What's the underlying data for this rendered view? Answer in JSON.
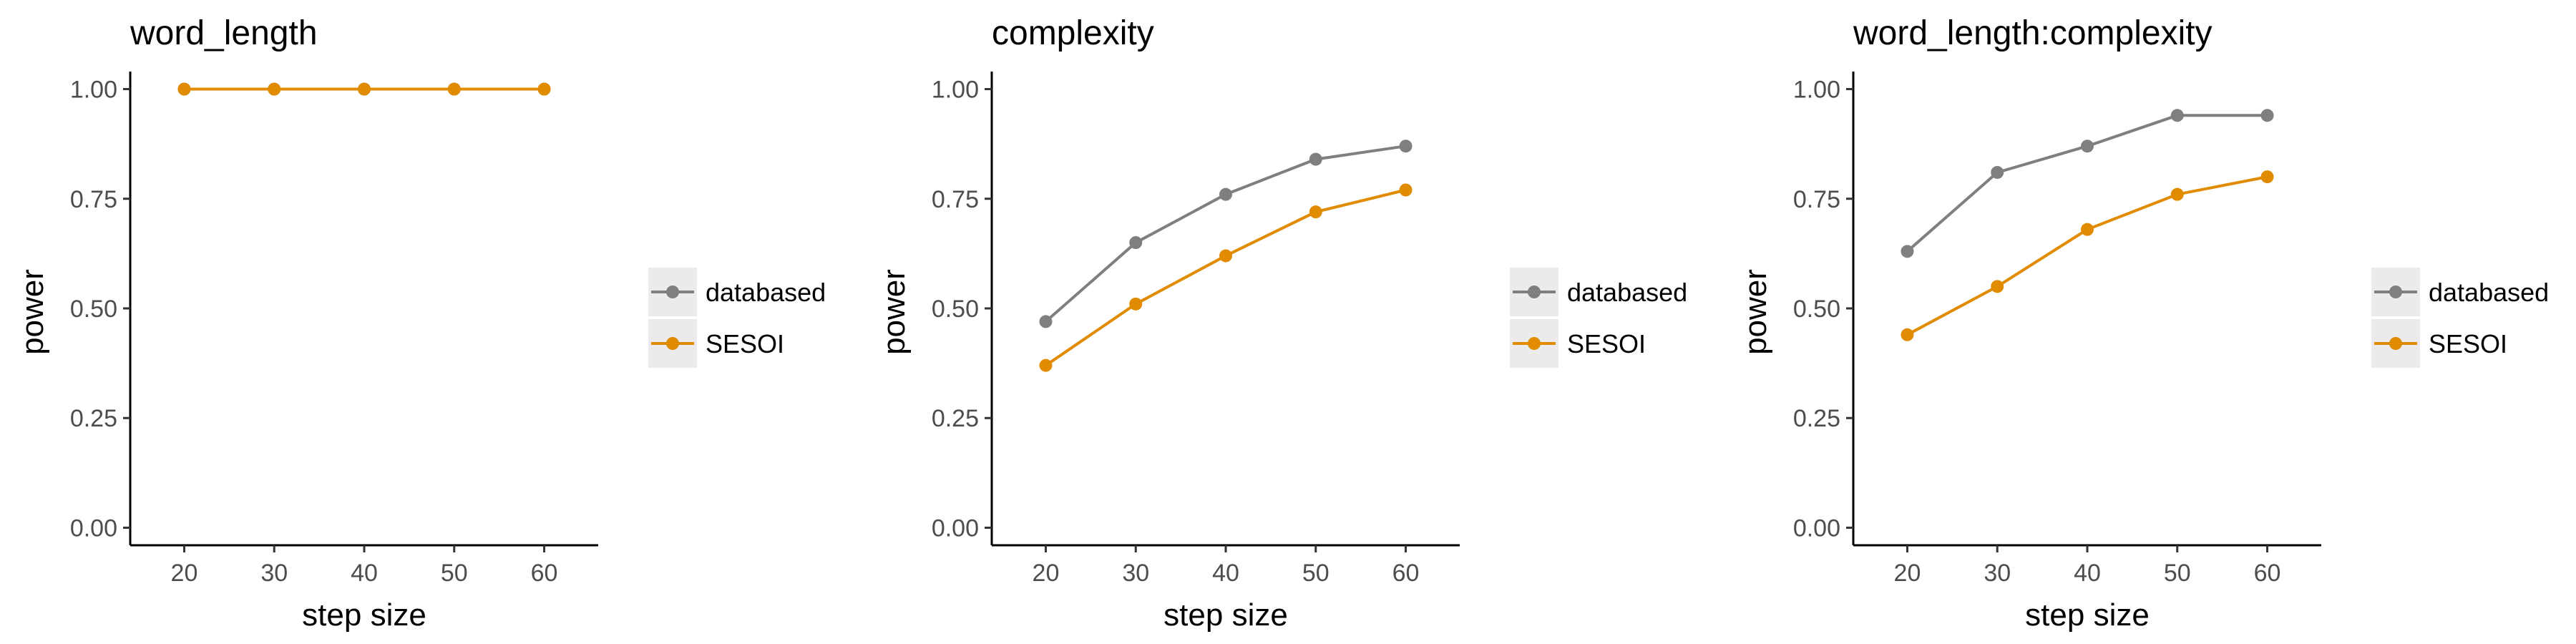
{
  "chart_data": [
    {
      "type": "line",
      "title": "word_length",
      "xlabel": "step size",
      "ylabel": "power",
      "x": [
        20,
        30,
        40,
        50,
        60
      ],
      "xticks": [
        "20",
        "30",
        "40",
        "50",
        "60"
      ],
      "yticks": [
        "0.00",
        "0.25",
        "0.50",
        "0.75",
        "1.00"
      ],
      "xlim": [
        14,
        66
      ],
      "ylim": [
        -0.04,
        1.04
      ],
      "legend": "right",
      "grid": false,
      "series": [
        {
          "name": "databased",
          "color": "#7f7f7f",
          "values": [
            1.0,
            1.0,
            1.0,
            1.0,
            1.0
          ]
        },
        {
          "name": "SESOI",
          "color": "#e08b00",
          "values": [
            1.0,
            1.0,
            1.0,
            1.0,
            1.0
          ]
        }
      ]
    },
    {
      "type": "line",
      "title": "complexity",
      "xlabel": "step size",
      "ylabel": "power",
      "x": [
        20,
        30,
        40,
        50,
        60
      ],
      "xticks": [
        "20",
        "30",
        "40",
        "50",
        "60"
      ],
      "yticks": [
        "0.00",
        "0.25",
        "0.50",
        "0.75",
        "1.00"
      ],
      "xlim": [
        14,
        66
      ],
      "ylim": [
        -0.04,
        1.04
      ],
      "legend": "right",
      "grid": false,
      "series": [
        {
          "name": "databased",
          "color": "#7f7f7f",
          "values": [
            0.47,
            0.65,
            0.76,
            0.84,
            0.87
          ]
        },
        {
          "name": "SESOI",
          "color": "#e08b00",
          "values": [
            0.37,
            0.51,
            0.62,
            0.72,
            0.77
          ]
        }
      ]
    },
    {
      "type": "line",
      "title": "word_length:complexity",
      "xlabel": "step size",
      "ylabel": "power",
      "x": [
        20,
        30,
        40,
        50,
        60
      ],
      "xticks": [
        "20",
        "30",
        "40",
        "50",
        "60"
      ],
      "yticks": [
        "0.00",
        "0.25",
        "0.50",
        "0.75",
        "1.00"
      ],
      "xlim": [
        14,
        66
      ],
      "ylim": [
        -0.04,
        1.04
      ],
      "legend": "right",
      "grid": false,
      "series": [
        {
          "name": "databased",
          "color": "#7f7f7f",
          "values": [
            0.63,
            0.81,
            0.87,
            0.94,
            0.94
          ]
        },
        {
          "name": "SESOI",
          "color": "#e08b00",
          "values": [
            0.44,
            0.55,
            0.68,
            0.76,
            0.8
          ]
        }
      ]
    }
  ]
}
